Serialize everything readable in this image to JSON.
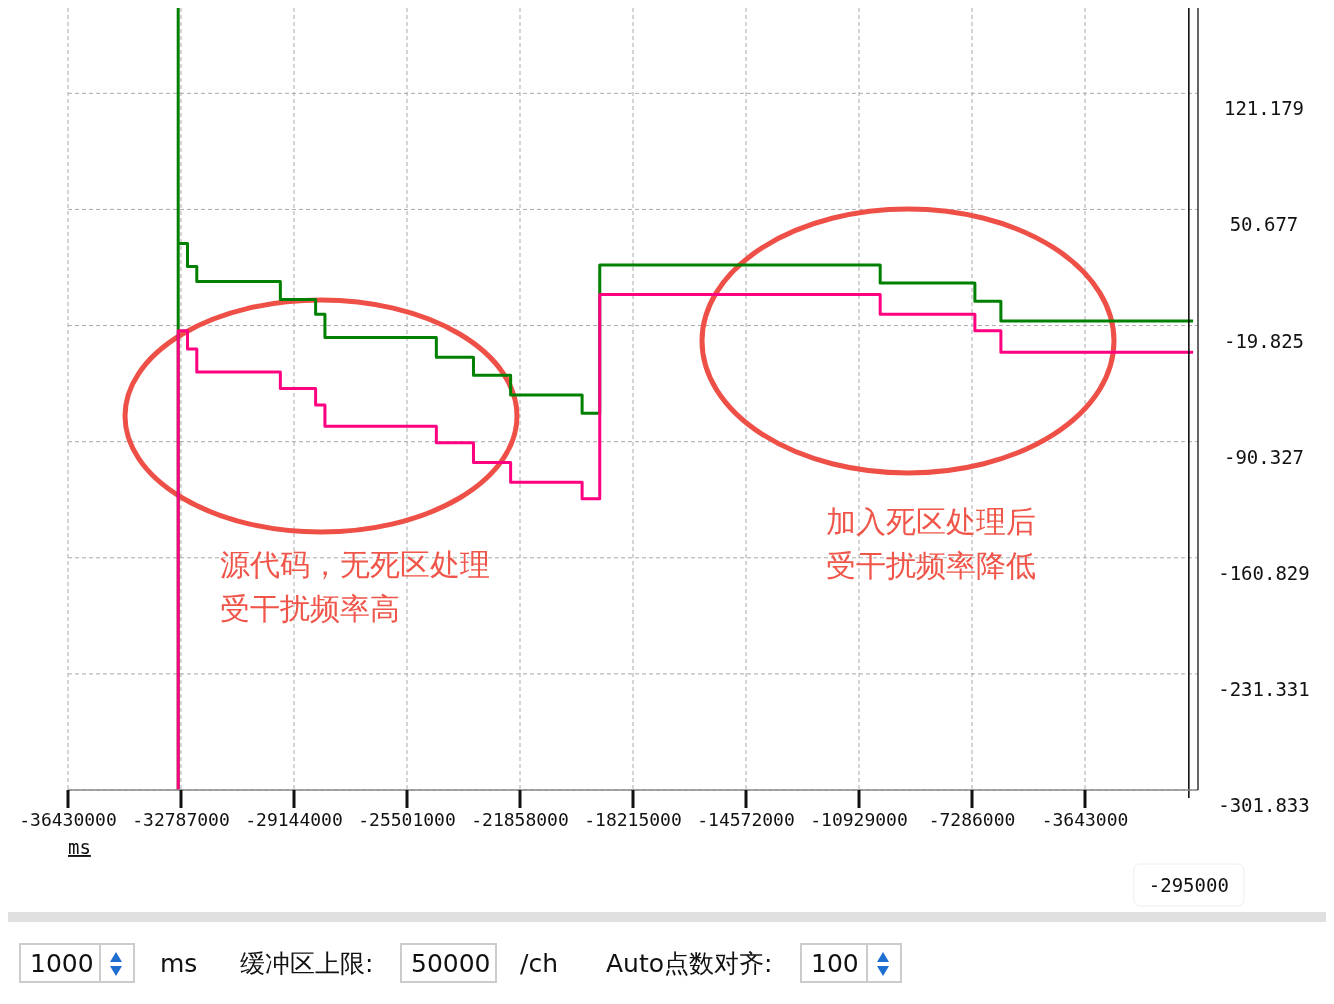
{
  "chart_data": {
    "type": "step",
    "xlabel": "ms",
    "xlim": [
      -36430000,
      0
    ],
    "xticks": [
      -36430000,
      -32787000,
      -29144000,
      -25501000,
      -21858000,
      -18215000,
      -14572000,
      -10929000,
      -7286000,
      -3643000
    ],
    "ylim": [
      -301.833,
      173
    ],
    "yticks": [
      121.179,
      50.677,
      -19.825,
      -90.327,
      -160.829,
      -231.331,
      -301.833
    ],
    "grid": true,
    "marker": "none",
    "line_style": "solid",
    "series": [
      {
        "color": "#008000",
        "x": [
          -32877000,
          -32877000,
          -32877000,
          -32577000,
          -32278000,
          -29584000,
          -28447000,
          -28147000,
          -24555000,
          -23358000,
          -22160000,
          -19856000,
          -19287000,
          -10246000,
          -7193000,
          -6355000,
          -158000
        ],
        "values": [
          -301.8,
          173,
          30,
          16,
          7,
          -4,
          -13,
          -27,
          -39,
          -50,
          -62,
          -73,
          17,
          6,
          -5,
          -17,
          -17
        ]
      },
      {
        "color": "#ff0080",
        "x": [
          -32877000,
          -32877000,
          -32577000,
          -32278000,
          -29584000,
          -28447000,
          -28147000,
          -24555000,
          -23358000,
          -22160000,
          -19856000,
          -19287000,
          -10246000,
          -7193000,
          -6355000,
          -158000
        ],
        "values": [
          -301.8,
          -23,
          -34,
          -48,
          -58,
          -68,
          -81,
          -91,
          -103,
          -115,
          -125,
          -1,
          -13,
          -23,
          -36,
          -36
        ]
      }
    ],
    "ref_lines": [
      {
        "axis": "x",
        "value": -295000,
        "label": "-295000",
        "color": "#000000"
      }
    ],
    "annotations": [
      "源代码，无死区处理受干扰频率高",
      "加入死区处理后受干扰频率降低",
      "1000",
      "ms",
      "缓冲区上限:",
      "50000",
      "/ch",
      "Auto点数对齐:",
      "100"
    ]
  }
}
